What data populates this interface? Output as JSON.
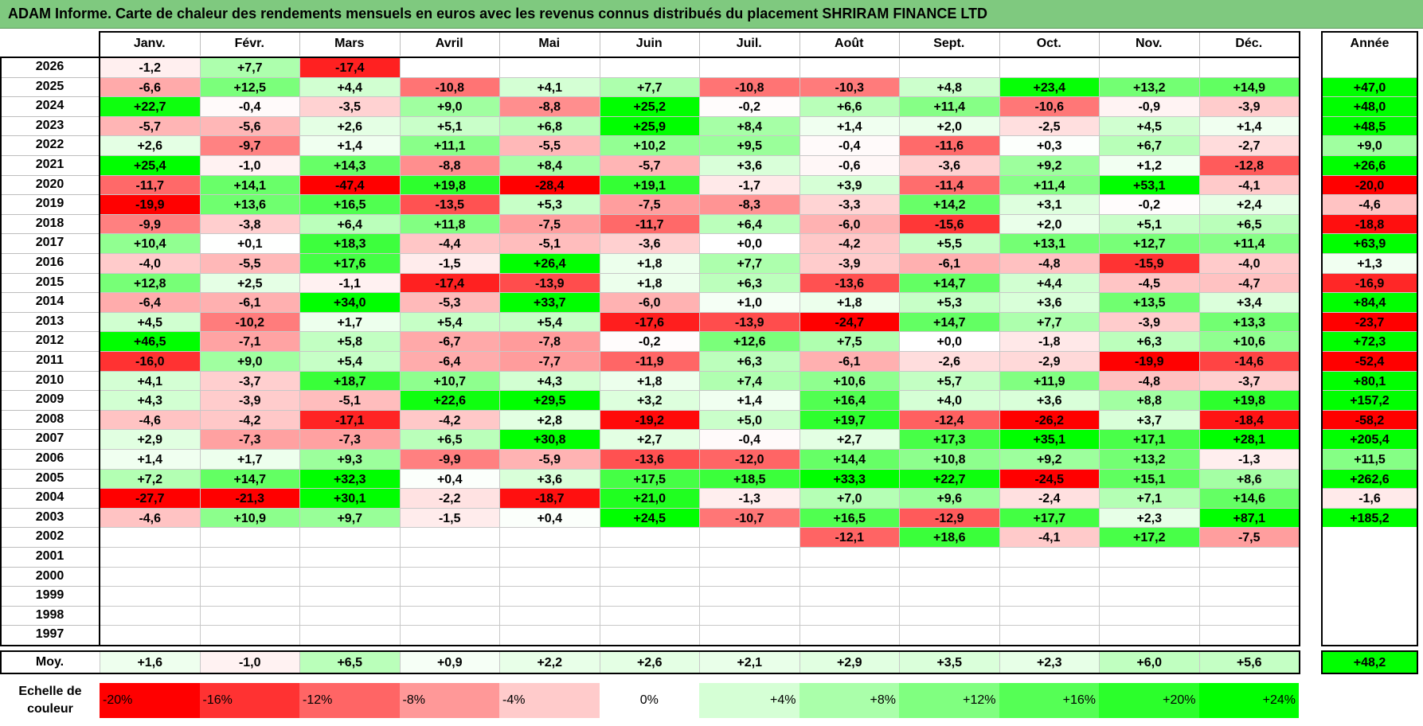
{
  "title": "ADAM Informe. Carte de chaleur des rendements mensuels en euros avec les revenus connus distribués du placement SHRIRAM FINANCE LTD",
  "chart_data": {
    "type": "heatmap",
    "months": [
      "Janv.",
      "Févr.",
      "Mars",
      "Avril",
      "Mai",
      "Juin",
      "Juil.",
      "Août",
      "Sept.",
      "Oct.",
      "Nov.",
      "Déc."
    ],
    "year_header": "Année",
    "rows": [
      {
        "year": "2026",
        "values": [
          -1.2,
          7.7,
          -17.4,
          null,
          null,
          null,
          null,
          null,
          null,
          null,
          null,
          null
        ],
        "annual": null
      },
      {
        "year": "2025",
        "values": [
          -6.6,
          12.5,
          4.4,
          -10.8,
          4.1,
          7.7,
          -10.8,
          -10.3,
          4.8,
          23.4,
          13.2,
          14.9
        ],
        "annual": 47.0
      },
      {
        "year": "2024",
        "values": [
          22.7,
          -0.4,
          -3.5,
          9.0,
          -8.8,
          25.2,
          -0.2,
          6.6,
          11.4,
          -10.6,
          -0.9,
          -3.9
        ],
        "annual": 48.0
      },
      {
        "year": "2023",
        "values": [
          -5.7,
          -5.6,
          2.6,
          5.1,
          6.8,
          25.9,
          8.4,
          1.4,
          2.0,
          -2.5,
          4.5,
          1.4
        ],
        "annual": 48.5
      },
      {
        "year": "2022",
        "values": [
          2.6,
          -9.7,
          1.4,
          11.1,
          -5.5,
          10.2,
          9.5,
          -0.4,
          -11.6,
          0.3,
          6.7,
          -2.7
        ],
        "annual": 9.0
      },
      {
        "year": "2021",
        "values": [
          25.4,
          -1.0,
          14.3,
          -8.8,
          8.4,
          -5.7,
          3.6,
          -0.6,
          -3.6,
          9.2,
          1.2,
          -12.8
        ],
        "annual": 26.6
      },
      {
        "year": "2020",
        "values": [
          -11.7,
          14.1,
          -47.4,
          19.8,
          -28.4,
          19.1,
          -1.7,
          3.9,
          -11.4,
          11.4,
          53.1,
          -4.1
        ],
        "annual": -20.0
      },
      {
        "year": "2019",
        "values": [
          -19.9,
          13.6,
          16.5,
          -13.5,
          5.3,
          -7.5,
          -8.3,
          -3.3,
          14.2,
          3.1,
          -0.2,
          2.4
        ],
        "annual": -4.6
      },
      {
        "year": "2018",
        "values": [
          -9.9,
          -3.8,
          6.4,
          11.8,
          -7.5,
          -11.7,
          6.4,
          -6.0,
          -15.6,
          2.0,
          5.1,
          6.5
        ],
        "annual": -18.8
      },
      {
        "year": "2017",
        "values": [
          10.4,
          0.1,
          18.3,
          -4.4,
          -5.1,
          -3.6,
          0.0,
          -4.2,
          5.5,
          13.1,
          12.7,
          11.4
        ],
        "annual": 63.9
      },
      {
        "year": "2016",
        "values": [
          -4.0,
          -5.5,
          17.6,
          -1.5,
          26.4,
          1.8,
          7.7,
          -3.9,
          -6.1,
          -4.8,
          -15.9,
          -4.0
        ],
        "annual": 1.3
      },
      {
        "year": "2015",
        "values": [
          12.8,
          2.5,
          -1.1,
          -17.4,
          -13.9,
          1.8,
          6.3,
          -13.6,
          14.7,
          4.4,
          -4.5,
          -4.7
        ],
        "annual": -16.9
      },
      {
        "year": "2014",
        "values": [
          -6.4,
          -6.1,
          34.0,
          -5.3,
          33.7,
          -6.0,
          1.0,
          1.8,
          5.3,
          3.6,
          13.5,
          3.4
        ],
        "annual": 84.4
      },
      {
        "year": "2013",
        "values": [
          4.5,
          -10.2,
          1.7,
          5.4,
          5.4,
          -17.6,
          -13.9,
          -24.7,
          14.7,
          7.7,
          -3.9,
          13.3
        ],
        "annual": -23.7
      },
      {
        "year": "2012",
        "values": [
          46.5,
          -7.1,
          5.8,
          -6.7,
          -7.8,
          -0.2,
          12.6,
          7.5,
          0.0,
          -1.8,
          6.3,
          10.6
        ],
        "annual": 72.3
      },
      {
        "year": "2011",
        "values": [
          -16.0,
          9.0,
          5.4,
          -6.4,
          -7.7,
          -11.9,
          6.3,
          -6.1,
          -2.6,
          -2.9,
          -19.9,
          -14.6
        ],
        "annual": -52.4
      },
      {
        "year": "2010",
        "values": [
          4.1,
          -3.7,
          18.7,
          10.7,
          4.3,
          1.8,
          7.4,
          10.6,
          5.7,
          11.9,
          -4.8,
          -3.7
        ],
        "annual": 80.1
      },
      {
        "year": "2009",
        "values": [
          4.3,
          -3.9,
          -5.1,
          22.6,
          29.5,
          3.2,
          1.4,
          16.4,
          4.0,
          3.6,
          8.8,
          19.8
        ],
        "annual": 157.2
      },
      {
        "year": "2008",
        "values": [
          -4.6,
          -4.2,
          -17.1,
          -4.2,
          2.8,
          -19.2,
          5.0,
          19.7,
          -12.4,
          -26.2,
          3.7,
          -18.4
        ],
        "annual": -58.2
      },
      {
        "year": "2007",
        "values": [
          2.9,
          -7.3,
          -7.3,
          6.5,
          30.8,
          2.7,
          -0.4,
          2.7,
          17.3,
          35.1,
          17.1,
          28.1
        ],
        "annual": 205.4
      },
      {
        "year": "2006",
        "values": [
          1.4,
          1.7,
          9.3,
          -9.9,
          -5.9,
          -13.6,
          -12.0,
          14.4,
          10.8,
          9.2,
          13.2,
          -1.3
        ],
        "annual": 11.5
      },
      {
        "year": "2005",
        "values": [
          7.2,
          14.7,
          32.3,
          0.4,
          3.6,
          17.5,
          18.5,
          33.3,
          22.7,
          -24.5,
          15.1,
          8.6
        ],
        "annual": 262.6
      },
      {
        "year": "2004",
        "values": [
          -27.7,
          -21.3,
          30.1,
          -2.2,
          -18.7,
          21.0,
          -1.3,
          7.0,
          9.6,
          -2.4,
          7.1,
          14.6
        ],
        "annual": -1.6
      },
      {
        "year": "2003",
        "values": [
          -4.6,
          10.9,
          9.7,
          -1.5,
          0.4,
          24.5,
          -10.7,
          16.5,
          -12.9,
          17.7,
          2.3,
          87.1
        ],
        "annual": 185.2
      },
      {
        "year": "2002",
        "values": [
          null,
          null,
          null,
          null,
          null,
          null,
          null,
          -12.1,
          18.6,
          -4.1,
          17.2,
          -7.5
        ],
        "annual": null
      },
      {
        "year": "2001",
        "values": [
          null,
          null,
          null,
          null,
          null,
          null,
          null,
          null,
          null,
          null,
          null,
          null
        ],
        "annual": null
      },
      {
        "year": "2000",
        "values": [
          null,
          null,
          null,
          null,
          null,
          null,
          null,
          null,
          null,
          null,
          null,
          null
        ],
        "annual": null
      },
      {
        "year": "1999",
        "values": [
          null,
          null,
          null,
          null,
          null,
          null,
          null,
          null,
          null,
          null,
          null,
          null
        ],
        "annual": null
      },
      {
        "year": "1998",
        "values": [
          null,
          null,
          null,
          null,
          null,
          null,
          null,
          null,
          null,
          null,
          null,
          null
        ],
        "annual": null
      },
      {
        "year": "1997",
        "values": [
          null,
          null,
          null,
          null,
          null,
          null,
          null,
          null,
          null,
          null,
          null,
          null
        ],
        "annual": null
      }
    ],
    "average": {
      "label": "Moy.",
      "values": [
        1.6,
        -1.0,
        6.5,
        0.9,
        2.2,
        2.6,
        2.1,
        2.9,
        3.5,
        2.3,
        6.0,
        5.6
      ],
      "annual": 48.2
    },
    "color_scale": {
      "label": "Echelle de couleur",
      "stops": [
        {
          "label": "-20%",
          "value": -20,
          "color": "#ff0000"
        },
        {
          "label": "-16%",
          "value": -16,
          "color": "#ff3232"
        },
        {
          "label": "-12%",
          "value": -12,
          "color": "#ff6565"
        },
        {
          "label": "-8%",
          "value": -8,
          "color": "#ff9898"
        },
        {
          "label": "-4%",
          "value": -4,
          "color": "#ffcbcb"
        },
        {
          "label": "0%",
          "value": 0,
          "color": "#ffffff"
        },
        {
          "label": "+4%",
          "value": 4,
          "color": "#d5ffd5"
        },
        {
          "label": "+8%",
          "value": 8,
          "color": "#aaffaa"
        },
        {
          "label": "+12%",
          "value": 12,
          "color": "#80ff80"
        },
        {
          "label": "+16%",
          "value": 16,
          "color": "#55ff55"
        },
        {
          "label": "+20%",
          "value": 20,
          "color": "#2bff2b"
        },
        {
          "label": "+24%",
          "value": 24,
          "color": "#00ff00"
        }
      ]
    }
  }
}
